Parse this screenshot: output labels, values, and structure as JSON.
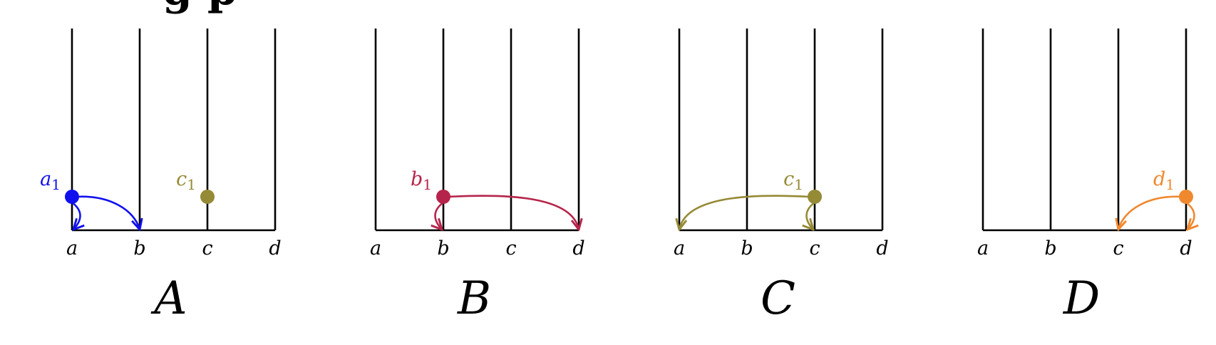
{
  "colors": {
    "blue": "#1010ee",
    "crimson": "#b5244a",
    "olive": "#958a35",
    "orange": "#f0882e",
    "black": "#000000"
  },
  "panels": [
    {
      "title": "A",
      "poles": [
        "a",
        "b",
        "c",
        "d"
      ],
      "markers": [
        {
          "label": "a",
          "subscript": "1",
          "pole": "a",
          "color": "blue"
        },
        {
          "label": "c",
          "subscript": "1",
          "pole": "c",
          "color": "olive"
        }
      ],
      "arcs": [
        {
          "from": "a",
          "to": "a",
          "color": "blue"
        },
        {
          "from": "a",
          "to": "b",
          "color": "blue"
        }
      ]
    },
    {
      "title": "B",
      "poles": [
        "a",
        "b",
        "c",
        "d"
      ],
      "markers": [
        {
          "label": "b",
          "subscript": "1",
          "pole": "b",
          "color": "crimson"
        }
      ],
      "arcs": [
        {
          "from": "b",
          "to": "b",
          "color": "crimson"
        },
        {
          "from": "b",
          "to": "d",
          "color": "crimson"
        }
      ]
    },
    {
      "title": "C",
      "poles": [
        "a",
        "b",
        "c",
        "d"
      ],
      "markers": [
        {
          "label": "c",
          "subscript": "1",
          "pole": "c",
          "color": "olive"
        }
      ],
      "arcs": [
        {
          "from": "c",
          "to": "a",
          "color": "olive"
        },
        {
          "from": "c",
          "to": "c",
          "color": "olive"
        }
      ]
    },
    {
      "title": "D",
      "poles": [
        "a",
        "b",
        "c",
        "d"
      ],
      "markers": [
        {
          "label": "d",
          "subscript": "1",
          "pole": "d",
          "color": "orange"
        }
      ],
      "arcs": [
        {
          "from": "d",
          "to": "c",
          "color": "orange"
        },
        {
          "from": "d",
          "to": "d",
          "color": "orange"
        }
      ]
    }
  ]
}
